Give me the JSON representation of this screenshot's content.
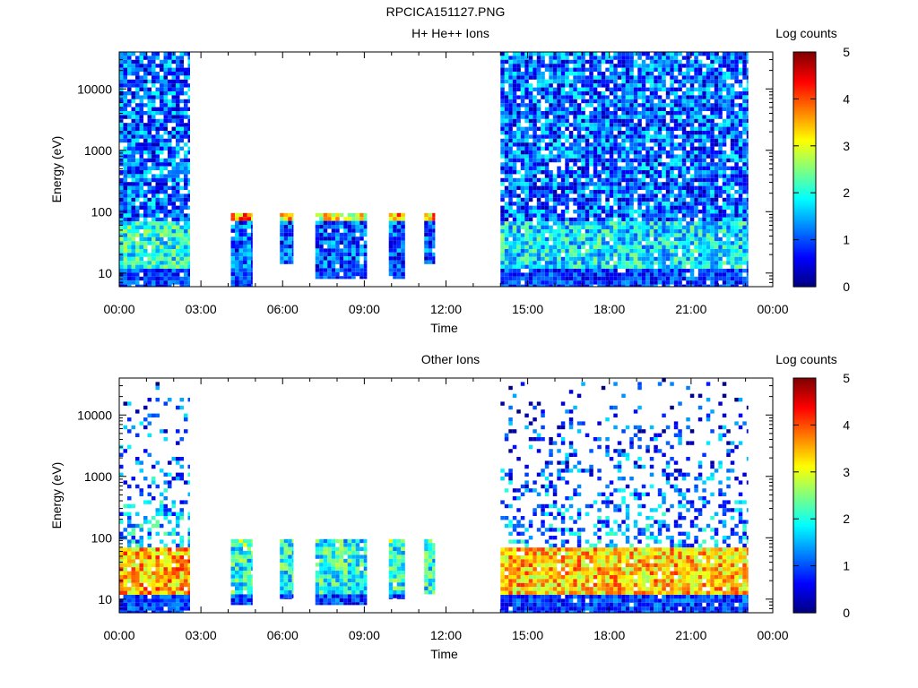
{
  "figure_title": "RPCICA151127.PNG",
  "chart_data": [
    {
      "type": "heatmap",
      "title": "H+ He++ Ions",
      "xlabel": "Time",
      "ylabel": "Energy (eV)",
      "colorbar_label": "Log counts",
      "x_ticks": [
        "00:00",
        "03:00",
        "06:00",
        "09:00",
        "12:00",
        "15:00",
        "18:00",
        "21:00",
        "00:00"
      ],
      "x_range_hours": [
        0,
        24
      ],
      "y_scale": "log",
      "y_ticks": [
        "10",
        "100",
        "1000",
        "10000"
      ],
      "y_range_eV": [
        6,
        40000
      ],
      "colorbar_ticks": [
        "0",
        "1",
        "2",
        "3",
        "4",
        "5"
      ],
      "colorbar_range": [
        0,
        5
      ],
      "colormap": "jet",
      "data_blocks": [
        {
          "start_h": 0.0,
          "end_h": 2.6,
          "emin_eV": 6,
          "emax_eV": 40000,
          "level": 1.1,
          "low_level": 2.0
        },
        {
          "start_h": 4.1,
          "end_h": 4.9,
          "emin_eV": 6,
          "emax_eV": 95,
          "level": 3.6,
          "low_level": 1.0
        },
        {
          "start_h": 5.9,
          "end_h": 6.4,
          "emin_eV": 14,
          "emax_eV": 95,
          "level": 3.2,
          "low_level": 1.0
        },
        {
          "start_h": 7.2,
          "end_h": 9.1,
          "emin_eV": 8,
          "emax_eV": 95,
          "level": 3.0,
          "low_level": 1.0
        },
        {
          "start_h": 9.9,
          "end_h": 10.5,
          "emin_eV": 8,
          "emax_eV": 95,
          "level": 3.5,
          "low_level": 1.0
        },
        {
          "start_h": 11.2,
          "end_h": 11.6,
          "emin_eV": 14,
          "emax_eV": 95,
          "level": 3.5,
          "low_level": 1.0
        },
        {
          "start_h": 14.0,
          "end_h": 23.1,
          "emin_eV": 6,
          "emax_eV": 40000,
          "level": 1.1,
          "low_level": 1.8
        }
      ]
    },
    {
      "type": "heatmap",
      "title": "Other Ions",
      "xlabel": "Time",
      "ylabel": "Energy (eV)",
      "colorbar_label": "Log counts",
      "x_ticks": [
        "00:00",
        "03:00",
        "06:00",
        "09:00",
        "12:00",
        "15:00",
        "18:00",
        "21:00",
        "00:00"
      ],
      "x_range_hours": [
        0,
        24
      ],
      "y_scale": "log",
      "y_ticks": [
        "10",
        "100",
        "1000",
        "10000"
      ],
      "y_range_eV": [
        6,
        40000
      ],
      "colorbar_ticks": [
        "0",
        "1",
        "2",
        "3",
        "4",
        "5"
      ],
      "colorbar_range": [
        0,
        5
      ],
      "colormap": "jet",
      "data_blocks": [
        {
          "start_h": 0.0,
          "end_h": 2.6,
          "emin_eV": 6,
          "emax_eV": 40000,
          "level": 2.0,
          "low_level": 3.5
        },
        {
          "start_h": 4.1,
          "end_h": 4.9,
          "emin_eV": 8,
          "emax_eV": 95,
          "level": 3.8,
          "low_level": 2.0
        },
        {
          "start_h": 5.9,
          "end_h": 6.4,
          "emin_eV": 10,
          "emax_eV": 95,
          "level": 3.3,
          "low_level": 2.0
        },
        {
          "start_h": 7.2,
          "end_h": 9.1,
          "emin_eV": 8,
          "emax_eV": 95,
          "level": 3.2,
          "low_level": 2.0
        },
        {
          "start_h": 9.9,
          "end_h": 10.5,
          "emin_eV": 10,
          "emax_eV": 95,
          "level": 3.6,
          "low_level": 2.0
        },
        {
          "start_h": 11.2,
          "end_h": 11.6,
          "emin_eV": 12,
          "emax_eV": 95,
          "level": 3.6,
          "low_level": 2.0
        },
        {
          "start_h": 14.0,
          "end_h": 23.1,
          "emin_eV": 6,
          "emax_eV": 40000,
          "level": 1.8,
          "low_level": 3.4
        }
      ]
    }
  ]
}
